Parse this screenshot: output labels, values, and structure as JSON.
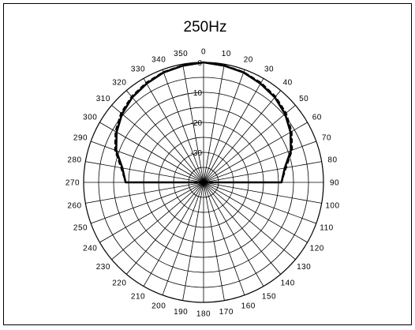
{
  "chart_data": {
    "type": "polar-line",
    "title": "250Hz",
    "angle_unit": "degrees",
    "angle_zero": "top",
    "angle_direction": "clockwise",
    "angular_tick_step": 10,
    "angular_ticks": [
      "0",
      "10",
      "20",
      "30",
      "40",
      "50",
      "60",
      "70",
      "80",
      "90",
      "100",
      "110",
      "120",
      "130",
      "140",
      "150",
      "160",
      "170",
      "180",
      "190",
      "200",
      "210",
      "220",
      "230",
      "240",
      "250",
      "260",
      "270",
      "280",
      "290",
      "300",
      "310",
      "320",
      "330",
      "340",
      "350"
    ],
    "radial_range": [
      -40,
      0
    ],
    "radial_grid_step": 5,
    "radial_labels": [
      "0",
      "-10",
      "-20",
      "-30"
    ],
    "grid": true,
    "series": [
      {
        "style": "solid",
        "points": [
          [
            0,
            0
          ],
          [
            10,
            -0.5
          ],
          [
            20,
            -1
          ],
          [
            30,
            -2
          ],
          [
            40,
            -3
          ],
          [
            50,
            -4.5
          ],
          [
            60,
            -6.5
          ],
          [
            70,
            -9
          ],
          [
            80,
            -12.5
          ],
          [
            90,
            -14
          ],
          [
            270,
            -14
          ],
          [
            280,
            -12.5
          ],
          [
            290,
            -9
          ],
          [
            300,
            -6.5
          ],
          [
            310,
            -4.5
          ],
          [
            320,
            -3
          ],
          [
            330,
            -2
          ],
          [
            340,
            -1
          ],
          [
            350,
            -0.5
          ],
          [
            360,
            0
          ]
        ]
      },
      {
        "style": "dashed",
        "points": [
          [
            0,
            0
          ],
          [
            10,
            -0.3
          ],
          [
            20,
            -0.8
          ],
          [
            30,
            -1.6
          ],
          [
            40,
            -2.6
          ],
          [
            50,
            -4
          ],
          [
            60,
            -6
          ],
          [
            70,
            -8.5
          ],
          [
            80,
            -12
          ],
          [
            90,
            -14
          ],
          [
            270,
            -14
          ],
          [
            280,
            -12
          ],
          [
            290,
            -8.5
          ],
          [
            300,
            -6
          ],
          [
            310,
            -4
          ],
          [
            320,
            -2.6
          ],
          [
            330,
            -1.6
          ],
          [
            340,
            -0.8
          ],
          [
            350,
            -0.3
          ],
          [
            360,
            0
          ]
        ]
      }
    ],
    "colors": {
      "line": "#000000",
      "grid": "#000000",
      "background": "#ffffff"
    }
  }
}
